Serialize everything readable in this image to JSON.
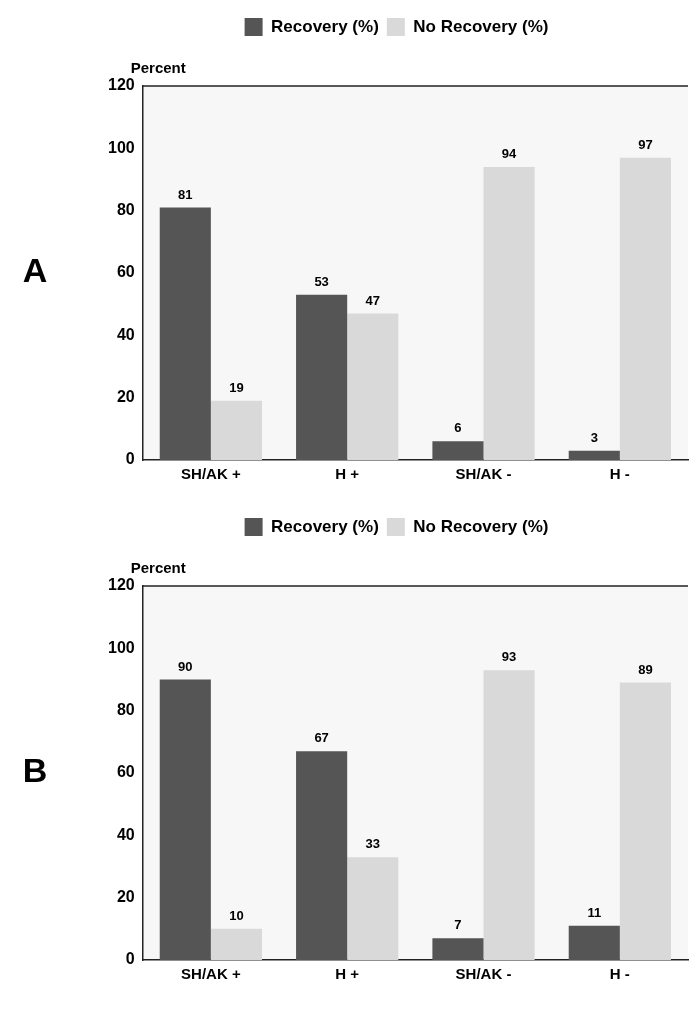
{
  "chart_data": [
    {
      "type": "bar",
      "ylabel": "Percent",
      "annotations": [
        "A"
      ],
      "categories": [
        "SH/AK +",
        "H +",
        "SH/AK -",
        "H -"
      ],
      "series": [
        {
          "name": "Recovery (%)",
          "color": "#555555",
          "values": [
            81,
            53,
            6,
            3
          ]
        },
        {
          "name": "No Recovery (%)",
          "color": "#d9d9d9",
          "values": [
            19,
            47,
            94,
            97
          ]
        }
      ],
      "ylim": [
        0,
        120
      ],
      "yticks": [
        0,
        20,
        40,
        60,
        80,
        100,
        120
      ],
      "grid": false,
      "legend": "top",
      "data_labels": true
    },
    {
      "type": "bar",
      "ylabel": "Percent",
      "annotations": [
        "B"
      ],
      "categories": [
        "SH/AK +",
        "H +",
        "SH/AK -",
        "H -"
      ],
      "series": [
        {
          "name": "Recovery (%)",
          "color": "#555555",
          "values": [
            90,
            67,
            7,
            11
          ]
        },
        {
          "name": "No Recovery (%)",
          "color": "#d9d9d9",
          "values": [
            10,
            33,
            93,
            89
          ]
        }
      ],
      "ylim": [
        0,
        120
      ],
      "yticks": [
        0,
        20,
        40,
        60,
        80,
        100,
        120
      ],
      "grid": false,
      "legend": "top",
      "data_labels": true
    }
  ]
}
